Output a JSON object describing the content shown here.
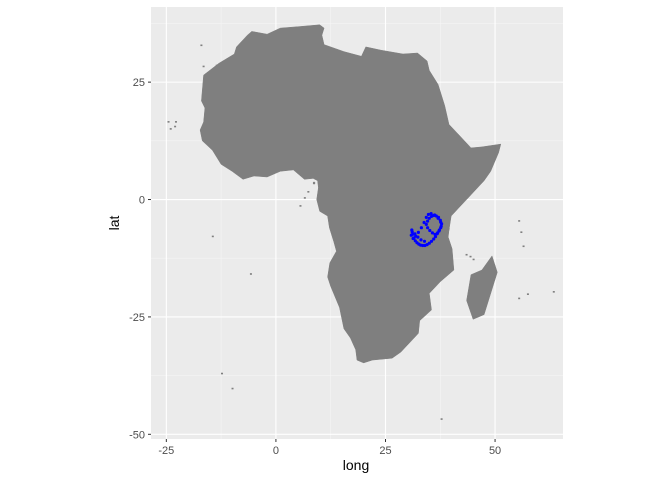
{
  "chart_data": {
    "type": "map",
    "title": "",
    "xlabel": "long",
    "ylabel": "lat",
    "xlim": [
      -28.5,
      65.5
    ],
    "ylim": [
      -51,
      41
    ],
    "x_ticks": [
      -25,
      0,
      25,
      50
    ],
    "x_tick_labels": [
      "-25",
      "0",
      "25",
      "50"
    ],
    "y_ticks": [
      25,
      0,
      -25,
      -50
    ],
    "y_tick_labels": [
      "25",
      "0",
      "-25",
      "-50"
    ],
    "grid": true,
    "panel_background": "#ebebeb",
    "landmass": {
      "name": "Africa",
      "fill": "#7f7f7f",
      "outline": [
        [
          -17.0,
          21.0
        ],
        [
          -16.5,
          26.5
        ],
        [
          -13.0,
          29.0
        ],
        [
          -9.5,
          31.0
        ],
        [
          -9.0,
          32.5
        ],
        [
          -6.5,
          35.0
        ],
        [
          -5.5,
          35.8
        ],
        [
          -2.0,
          35.2
        ],
        [
          1.0,
          36.5
        ],
        [
          5.0,
          36.8
        ],
        [
          10.0,
          37.2
        ],
        [
          11.0,
          36.5
        ],
        [
          10.5,
          35.0
        ],
        [
          11.0,
          33.0
        ],
        [
          15.5,
          31.5
        ],
        [
          19.5,
          30.5
        ],
        [
          20.5,
          32.5
        ],
        [
          24.0,
          31.8
        ],
        [
          29.0,
          31.0
        ],
        [
          32.3,
          31.2
        ],
        [
          34.5,
          29.5
        ],
        [
          35.0,
          27.5
        ],
        [
          37.0,
          24.5
        ],
        [
          38.5,
          20.0
        ],
        [
          39.5,
          16.0
        ],
        [
          42.0,
          13.5
        ],
        [
          44.5,
          11.0
        ],
        [
          47.0,
          11.2
        ],
        [
          51.3,
          11.8
        ],
        [
          50.8,
          10.0
        ],
        [
          49.0,
          6.0
        ],
        [
          47.5,
          4.0
        ],
        [
          44.5,
          1.0
        ],
        [
          41.5,
          -2.0
        ],
        [
          40.0,
          -3.5
        ],
        [
          39.5,
          -6.5
        ],
        [
          39.3,
          -8.0
        ],
        [
          40.2,
          -10.5
        ],
        [
          40.6,
          -15.0
        ],
        [
          37.5,
          -17.5
        ],
        [
          35.0,
          -20.0
        ],
        [
          35.5,
          -23.5
        ],
        [
          32.8,
          -25.8
        ],
        [
          32.5,
          -28.5
        ],
        [
          31.0,
          -30.0
        ],
        [
          28.5,
          -32.5
        ],
        [
          26.5,
          -33.8
        ],
        [
          22.0,
          -34.2
        ],
        [
          20.0,
          -34.8
        ],
        [
          18.5,
          -34.2
        ],
        [
          18.2,
          -32.0
        ],
        [
          17.0,
          -29.5
        ],
        [
          15.5,
          -27.5
        ],
        [
          14.5,
          -23.0
        ],
        [
          12.5,
          -18.5
        ],
        [
          11.8,
          -16.5
        ],
        [
          12.3,
          -13.5
        ],
        [
          13.8,
          -11.0
        ],
        [
          13.2,
          -9.0
        ],
        [
          12.2,
          -6.0
        ],
        [
          11.8,
          -3.5
        ],
        [
          10.0,
          -2.5
        ],
        [
          9.3,
          0.0
        ],
        [
          9.7,
          2.5
        ],
        [
          9.5,
          4.0
        ],
        [
          8.5,
          4.5
        ],
        [
          6.5,
          4.3
        ],
        [
          4.0,
          6.3
        ],
        [
          1.0,
          6.0
        ],
        [
          -2.0,
          4.8
        ],
        [
          -5.0,
          5.0
        ],
        [
          -7.5,
          4.3
        ],
        [
          -10.0,
          6.0
        ],
        [
          -12.5,
          7.5
        ],
        [
          -14.5,
          10.5
        ],
        [
          -16.8,
          12.5
        ],
        [
          -17.3,
          14.8
        ],
        [
          -16.5,
          16.5
        ],
        [
          -16.2,
          19.5
        ]
      ]
    },
    "islands": [
      {
        "name": "Madagascar",
        "fill": "#7f7f7f",
        "outline": [
          [
            49.3,
            -12.0
          ],
          [
            50.5,
            -15.5
          ],
          [
            47.5,
            -24.5
          ],
          [
            45.0,
            -25.5
          ],
          [
            43.5,
            -21.5
          ],
          [
            44.5,
            -16.0
          ],
          [
            47.0,
            -15.0
          ]
        ]
      },
      {
        "name": "Zanzibar",
        "fill": "#7f7f7f",
        "outline": [
          [
            39.2,
            -5.8
          ],
          [
            39.6,
            -6.1
          ],
          [
            39.5,
            -6.6
          ],
          [
            39.2,
            -6.4
          ]
        ]
      },
      {
        "name": "Bioko",
        "fill": "#7f7f7f",
        "outline": [
          [
            8.5,
            3.7
          ],
          [
            8.9,
            3.7
          ],
          [
            8.9,
            3.3
          ],
          [
            8.5,
            3.3
          ]
        ]
      }
    ],
    "small_islands": [
      [
        -24.5,
        16.5
      ],
      [
        -24.0,
        15.0
      ],
      [
        -23.0,
        15.5
      ],
      [
        -22.8,
        16.5
      ],
      [
        -13.5,
        28.5
      ],
      [
        -16.5,
        28.3
      ],
      [
        -17.0,
        32.8
      ],
      [
        -14.4,
        -7.9
      ],
      [
        -5.7,
        -15.9
      ],
      [
        -12.3,
        -37.1
      ],
      [
        -9.9,
        -40.3
      ],
      [
        37.8,
        -46.8
      ],
      [
        57.5,
        -20.2
      ],
      [
        55.5,
        -21.1
      ],
      [
        63.4,
        -19.7
      ],
      [
        55.5,
        -4.6
      ],
      [
        56.0,
        -7.0
      ],
      [
        56.5,
        -10.0
      ],
      [
        43.5,
        -11.8
      ],
      [
        44.4,
        -12.2
      ],
      [
        45.1,
        -12.8
      ],
      [
        6.6,
        0.3
      ],
      [
        7.4,
        1.6
      ],
      [
        5.6,
        -1.4
      ]
    ],
    "series": [
      {
        "type": "scatter",
        "color": "#0000ff",
        "x": [
          31.0,
          31.2,
          31.5,
          31.8,
          32.2,
          32.6,
          33.0,
          33.5,
          34.0,
          34.5,
          35.0,
          35.5,
          36.0,
          36.4,
          36.8,
          37.2,
          37.6,
          37.8,
          37.5,
          37.1,
          36.6,
          36.0,
          35.5,
          35.0,
          34.6,
          34.3,
          34.6,
          35.1,
          35.7,
          36.3,
          36.9,
          37.3,
          37.7,
          37.6,
          37.0,
          36.2,
          35.4,
          34.8,
          34.3,
          33.8,
          33.2,
          32.5,
          31.9,
          31.3,
          30.9,
          31.1,
          31.7,
          32.4,
          33.1,
          33.9
        ],
        "y": [
          -6.5,
          -7.4,
          -8.2,
          -8.8,
          -9.2,
          -9.5,
          -9.7,
          -9.8,
          -9.8,
          -9.6,
          -9.3,
          -8.9,
          -8.4,
          -7.9,
          -7.3,
          -6.7,
          -6.0,
          -5.2,
          -4.4,
          -3.8,
          -3.5,
          -3.4,
          -3.6,
          -4.0,
          -4.6,
          -5.3,
          -6.0,
          -6.6,
          -7.1,
          -7.4,
          -7.1,
          -6.5,
          -5.7,
          -4.8,
          -4.0,
          -3.3,
          -3.0,
          -3.2,
          -3.8,
          -4.9,
          -6.0,
          -7.0,
          -7.8,
          -8.3,
          -7.6,
          -6.9,
          -7.3,
          -8.0,
          -8.6,
          -8.9
        ]
      }
    ]
  }
}
